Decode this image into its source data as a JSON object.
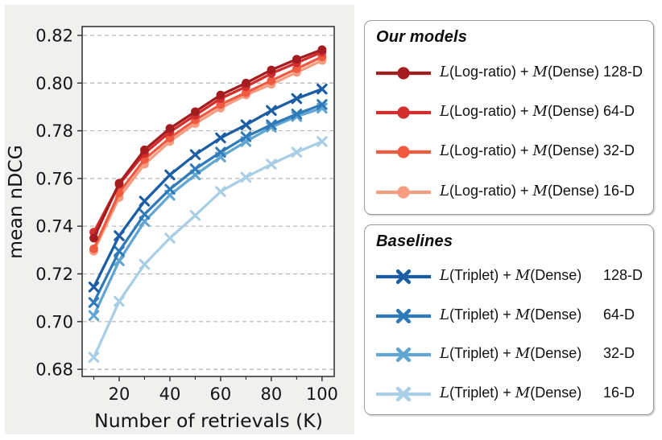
{
  "figure": {
    "page_background": "#ffffff",
    "panel_background": "#f0f0ee",
    "spine_color": "#2a2a2a",
    "grid_color": "#b3b3b3",
    "tick_label_color": "#141414"
  },
  "chart_data": {
    "type": "line",
    "title": "",
    "xlabel": "Number of retrievals (K)",
    "ylabel": "mean nDCG",
    "x": [
      10,
      20,
      30,
      40,
      50,
      60,
      70,
      80,
      90,
      100
    ],
    "xlim": [
      5.4,
      104.8
    ],
    "ylim": [
      0.677,
      0.8237
    ],
    "xticks_major": [
      20,
      40,
      60,
      80,
      100
    ],
    "xtick_labels": [
      "20",
      "40",
      "60",
      "80",
      "100"
    ],
    "xticks_minor": [
      10,
      30,
      50,
      70,
      90
    ],
    "yticks": [
      0.68,
      0.7,
      0.72,
      0.74,
      0.76,
      0.78,
      0.8,
      0.82
    ],
    "ytick_labels": [
      "0.68",
      "0.70",
      "0.72",
      "0.74",
      "0.76",
      "0.78",
      "0.80",
      "0.82"
    ],
    "grid": {
      "horizontal": true,
      "vertical": false,
      "style": "dashed"
    },
    "legend_position": "outside-right",
    "series": [
      {
        "name": "L(Log-ratio) + M(Dense) 128-D",
        "group": "our_models",
        "marker": "circle",
        "color": "#a41c1f",
        "values": [
          0.735,
          0.758,
          0.772,
          0.781,
          0.788,
          0.795,
          0.8,
          0.8055,
          0.81,
          0.814
        ]
      },
      {
        "name": "L(Log-ratio) + M(Dense) 64-D",
        "group": "our_models",
        "marker": "circle",
        "color": "#d32d2d",
        "values": [
          0.7375,
          0.7575,
          0.7705,
          0.7795,
          0.7865,
          0.7935,
          0.7985,
          0.804,
          0.8085,
          0.813
        ]
      },
      {
        "name": "L(Log-ratio) + M(Dense) 32-D",
        "group": "our_models",
        "marker": "circle",
        "color": "#ef5a41",
        "values": [
          0.7305,
          0.754,
          0.768,
          0.777,
          0.7845,
          0.791,
          0.796,
          0.801,
          0.806,
          0.811
        ]
      },
      {
        "name": "L(Log-ratio) + M(Dense) 16-D",
        "group": "our_models",
        "marker": "circle",
        "color": "#f69c80",
        "values": [
          0.7295,
          0.752,
          0.766,
          0.7755,
          0.783,
          0.7895,
          0.795,
          0.7995,
          0.8045,
          0.8095
        ]
      },
      {
        "name": "L(Triplet) + M(Dense) 128-D",
        "group": "baselines",
        "marker": "x",
        "color": "#1c5ea6",
        "values": [
          0.7145,
          0.736,
          0.7505,
          0.7615,
          0.77,
          0.777,
          0.7825,
          0.7885,
          0.7935,
          0.7975
        ]
      },
      {
        "name": "L(Triplet) + M(Dense) 64-D",
        "group": "baselines",
        "marker": "x",
        "color": "#2f7ab8",
        "values": [
          0.708,
          0.7295,
          0.745,
          0.7555,
          0.764,
          0.771,
          0.7775,
          0.7825,
          0.787,
          0.791
        ]
      },
      {
        "name": "L(Triplet) + M(Dense) 32-D",
        "group": "baselines",
        "marker": "x",
        "color": "#61a5d2",
        "values": [
          0.7025,
          0.7255,
          0.742,
          0.753,
          0.7615,
          0.769,
          0.7755,
          0.7815,
          0.786,
          0.7895
        ]
      },
      {
        "name": "L(Triplet) + M(Dense) 16-D",
        "group": "baselines",
        "marker": "x",
        "color": "#a9cfe7",
        "values": [
          0.685,
          0.7085,
          0.724,
          0.735,
          0.7445,
          0.7545,
          0.7605,
          0.766,
          0.771,
          0.7755
        ]
      }
    ]
  },
  "legend": {
    "our_models": {
      "title": "Our models",
      "items": [
        {
          "formula": [
            {
              "t": "L",
              "i": true
            },
            {
              "t": "(Log-ratio) + ",
              "i": false
            },
            {
              "t": "M",
              "i": true
            },
            {
              "t": "(Dense)",
              "i": false
            }
          ],
          "dim": "128-D",
          "color": "#a41c1f",
          "marker": "circle"
        },
        {
          "formula": [
            {
              "t": "L",
              "i": true
            },
            {
              "t": "(Log-ratio) + ",
              "i": false
            },
            {
              "t": "M",
              "i": true
            },
            {
              "t": "(Dense)",
              "i": false
            }
          ],
          "dim": "64-D",
          "color": "#d32d2d",
          "marker": "circle"
        },
        {
          "formula": [
            {
              "t": "L",
              "i": true
            },
            {
              "t": "(Log-ratio) + ",
              "i": false
            },
            {
              "t": "M",
              "i": true
            },
            {
              "t": "(Dense)",
              "i": false
            }
          ],
          "dim": "32-D",
          "color": "#ef5a41",
          "marker": "circle"
        },
        {
          "formula": [
            {
              "t": "L",
              "i": true
            },
            {
              "t": "(Log-ratio) + ",
              "i": false
            },
            {
              "t": "M",
              "i": true
            },
            {
              "t": "(Dense)",
              "i": false
            }
          ],
          "dim": "16-D",
          "color": "#f69c80",
          "marker": "circle"
        }
      ]
    },
    "baselines": {
      "title": "Baselines",
      "items": [
        {
          "formula": [
            {
              "t": "L",
              "i": true
            },
            {
              "t": "(Triplet) + ",
              "i": false
            },
            {
              "t": "M",
              "i": true
            },
            {
              "t": "(Dense)",
              "i": false
            }
          ],
          "dim": "128-D",
          "color": "#1c5ea6",
          "marker": "x"
        },
        {
          "formula": [
            {
              "t": "L",
              "i": true
            },
            {
              "t": "(Triplet) + ",
              "i": false
            },
            {
              "t": "M",
              "i": true
            },
            {
              "t": "(Dense)",
              "i": false
            }
          ],
          "dim": "64-D",
          "color": "#2f7ab8",
          "marker": "x"
        },
        {
          "formula": [
            {
              "t": "L",
              "i": true
            },
            {
              "t": "(Triplet) + ",
              "i": false
            },
            {
              "t": "M",
              "i": true
            },
            {
              "t": "(Dense)",
              "i": false
            }
          ],
          "dim": "32-D",
          "color": "#61a5d2",
          "marker": "x"
        },
        {
          "formula": [
            {
              "t": "L",
              "i": true
            },
            {
              "t": "(Triplet) + ",
              "i": false
            },
            {
              "t": "M",
              "i": true
            },
            {
              "t": "(Dense)",
              "i": false
            }
          ],
          "dim": "16-D",
          "color": "#a9cfe7",
          "marker": "x"
        }
      ]
    }
  }
}
